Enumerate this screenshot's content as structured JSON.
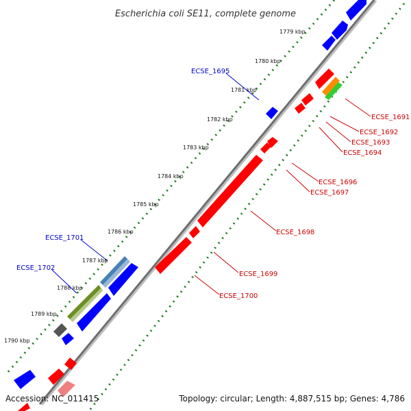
{
  "title": "Escherichia coli SE11, complete genome",
  "footer": {
    "accession": "Accession: NC_011415",
    "stats": "Topology: circular; Length: 4,887,515 bp; Genes: 4,786"
  },
  "colors": {
    "forward_gene": "#0000ff",
    "reverse_gene": "#ff0000",
    "forward_label": "#0000cc",
    "reverse_label": "#cc0000",
    "backbone": "#7a7a7a",
    "tick_dots": "#1a7a1a",
    "orange_feature": "#ff8c00",
    "green_feature": "#33cc33",
    "steelblue_feature": "#4682b4",
    "olive_feature": "#6b8e23",
    "gray_feature": "#555555",
    "pink_feature": "#f08080"
  },
  "ticks": [
    "1779 kbp",
    "1780 kbp",
    "1781 kbp",
    "1782 kbp",
    "1783 kbp",
    "1784 kbp",
    "1785 kbp",
    "1786 kbp",
    "1787 kbp",
    "1788 kbp",
    "1789 kbp",
    "1790 kbp"
  ],
  "forward_labels": [
    "ECSE_1695",
    "ECSE_1701",
    "ECSE_1702"
  ],
  "reverse_labels": [
    "ECSE_1691",
    "ECSE_1692",
    "ECSE_1693",
    "ECSE_1694",
    "ECSE_1696",
    "ECSE_1697",
    "ECSE_1698",
    "ECSE_1699",
    "ECSE_1700"
  ]
}
